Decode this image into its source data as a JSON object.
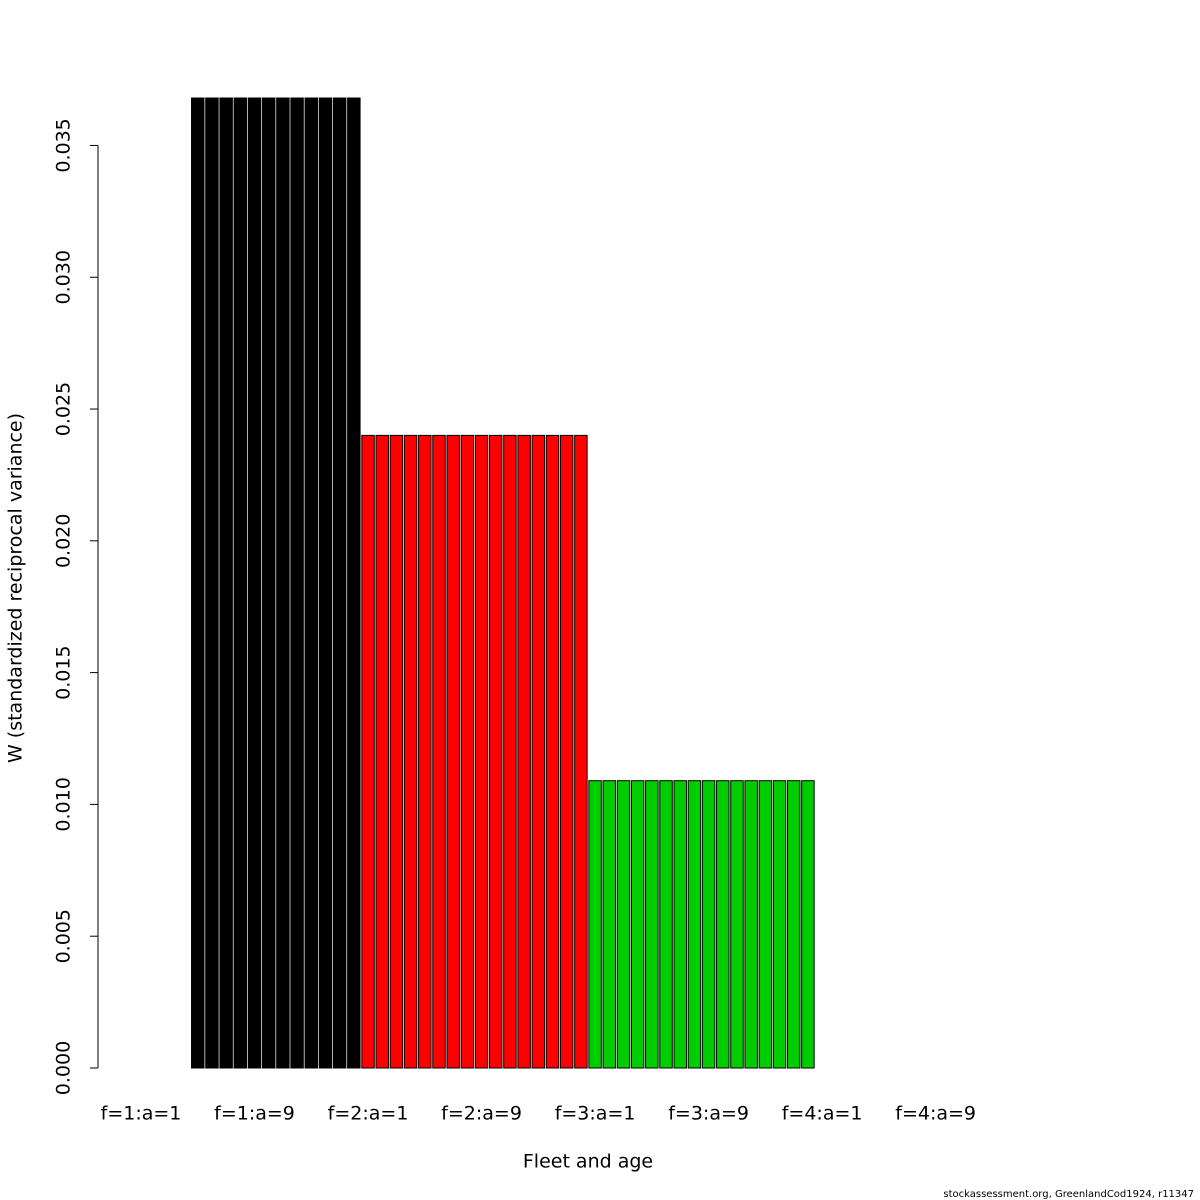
{
  "chart_data": {
    "type": "bar",
    "xlabel": "Fleet and age",
    "ylabel": "W (standardized reciprocal variance)",
    "footnote": "stockassessment.org, GreenlandCod1924, r11347",
    "categories": [
      "f=1:a=1",
      null,
      null,
      null,
      null,
      null,
      null,
      null,
      "f=1:a=9",
      null,
      null,
      null,
      null,
      null,
      null,
      null,
      "f=2:a=1",
      null,
      null,
      null,
      null,
      null,
      null,
      null,
      "f=2:a=9",
      null,
      null,
      null,
      null,
      null,
      null,
      null,
      "f=3:a=1",
      null,
      null,
      null,
      null,
      null,
      null,
      null,
      "f=3:a=9",
      null,
      null,
      null,
      null,
      null,
      null,
      null,
      "f=4:a=1",
      null,
      null,
      null,
      null,
      null,
      null,
      null,
      "f=4:a=9",
      null,
      null,
      null,
      null,
      null,
      null,
      null
    ],
    "values": [
      0,
      0,
      0,
      0,
      0.0368,
      0.0368,
      0.0368,
      0.0368,
      0.0368,
      0.0368,
      0.0368,
      0.0368,
      0.0368,
      0.0368,
      0.0368,
      0.0368,
      0.024,
      0.024,
      0.024,
      0.024,
      0.024,
      0.024,
      0.024,
      0.024,
      0.024,
      0.024,
      0.024,
      0.024,
      0.024,
      0.024,
      0.024,
      0.024,
      0.0109,
      0.0109,
      0.0109,
      0.0109,
      0.0109,
      0.0109,
      0.0109,
      0.0109,
      0.0109,
      0.0109,
      0.0109,
      0.0109,
      0.0109,
      0.0109,
      0.0109,
      0.0109,
      0,
      0,
      0,
      0,
      0,
      0,
      0,
      0,
      0,
      0,
      0,
      0,
      0,
      0,
      0,
      0
    ],
    "fleet_colors": [
      "#000000",
      "#ff0000",
      "#00cd00",
      "#0000ff"
    ],
    "ylim": [
      0,
      0.0368
    ],
    "yticks": [
      {
        "value": 0,
        "label": "0.000"
      },
      {
        "value": 0.005,
        "label": "0.005"
      },
      {
        "value": 0.01,
        "label": "0.010"
      },
      {
        "value": 0.015,
        "label": "0.015"
      },
      {
        "value": 0.02,
        "label": "0.020"
      },
      {
        "value": 0.025,
        "label": "0.025"
      },
      {
        "value": 0.03,
        "label": "0.030"
      },
      {
        "value": 0.035,
        "label": "0.035"
      }
    ]
  }
}
